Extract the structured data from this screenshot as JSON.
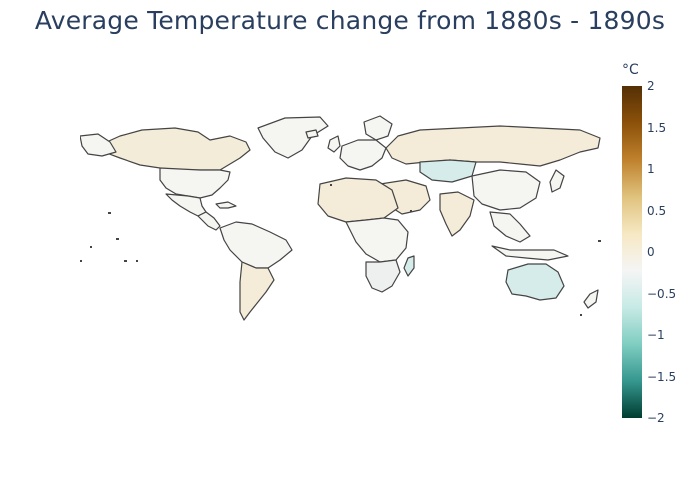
{
  "title": "Average Temperature change from 1880s - 1890s",
  "colorbar": {
    "unit": "°C",
    "min": -2,
    "max": 2,
    "ticks": [
      {
        "value": 2,
        "label": "2"
      },
      {
        "value": 1.5,
        "label": "1.5"
      },
      {
        "value": 1,
        "label": "1"
      },
      {
        "value": 0.5,
        "label": "0.5"
      },
      {
        "value": 0,
        "label": "0"
      },
      {
        "value": -0.5,
        "label": "−0.5"
      },
      {
        "value": -1,
        "label": "−1"
      },
      {
        "value": -1.5,
        "label": "−1.5"
      },
      {
        "value": -2,
        "label": "−2"
      }
    ],
    "colors": [
      "#003c30",
      "#35978f",
      "#80cdc1",
      "#c7eae5",
      "#f5f5f5",
      "#f6e8c3",
      "#dfc27d",
      "#bf812d",
      "#8c510a",
      "#543005"
    ]
  },
  "colors": {
    "land_default": "#f5f5f2",
    "border": "#444444",
    "warm_light": "#f4ecd8",
    "cool_light": "#d6ecea"
  }
}
